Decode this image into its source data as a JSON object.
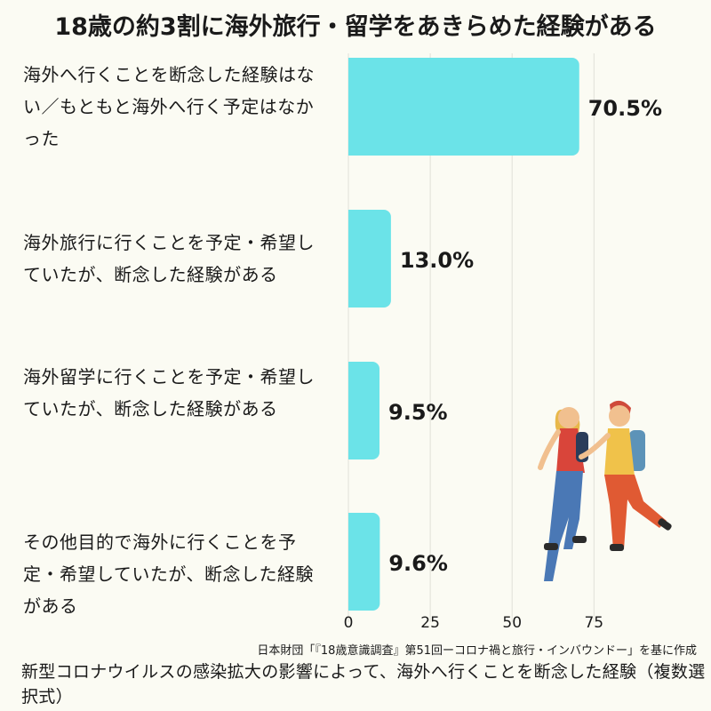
{
  "title": "18歳の約3割に海外旅行・留学をあきらめた経験がある",
  "source": "日本財団「『18歳意識調査』第51回ーコロナ禍と旅行・インバウンドー」を基に作成",
  "caption": "新型コロナウイルスの感染拡大の影響によって、海外へ行くことを断念した経験（複数選択式）",
  "colors": {
    "bar": "#6be3e8",
    "text": "#1a1a1a",
    "background": "#fbfbf3",
    "grid": "#e0e0d8"
  },
  "illustration": "two-travelers-with-backpacks",
  "chart_data": {
    "type": "bar",
    "orientation": "horizontal",
    "categories": [
      "海外へ行くことを断念した経験はない／もともと海外へ行く予定はなかった",
      "海外旅行に行くことを予定・希望していたが、断念した経験がある",
      "海外留学に行くことを予定・希望していたが、断念した経験がある",
      "その他目的で海外に行くことを予定・希望していたが、断念した経験がある"
    ],
    "values": [
      70.5,
      13.0,
      9.5,
      9.6
    ],
    "value_labels": [
      "70.5%",
      "13.0%",
      "9.5%",
      "9.6%"
    ],
    "xticks": [
      0,
      25,
      50,
      75
    ],
    "xlim": [
      0,
      95
    ],
    "grid": true,
    "legend": "none"
  }
}
